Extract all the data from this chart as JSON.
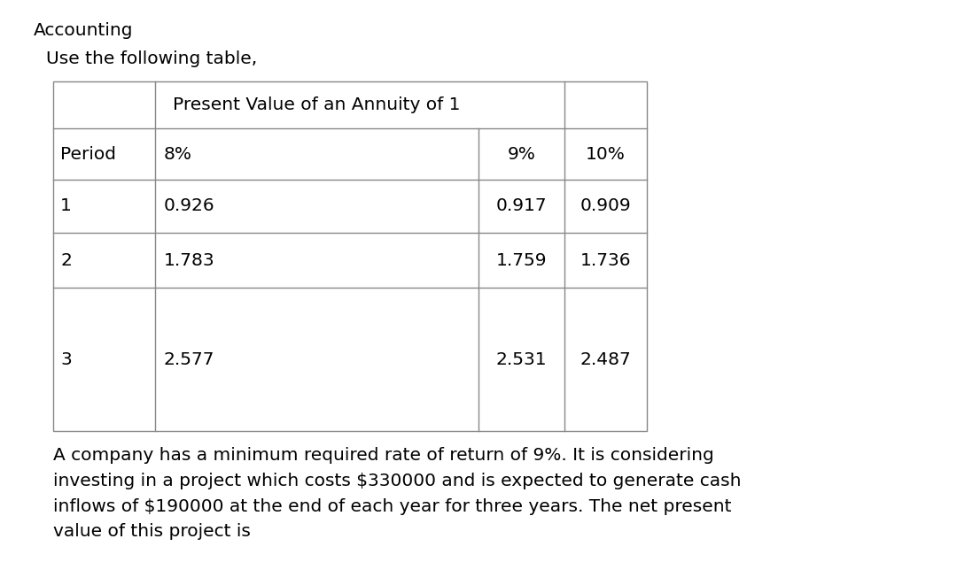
{
  "title": "Accounting",
  "subtitle": "Use the following table,",
  "table_header_merged": "Present Value of an Annuity of 1",
  "col_headers": [
    "Period",
    "8%",
    "9%",
    "10%"
  ],
  "rows": [
    [
      "1",
      "0.926",
      "0.917",
      "0.909"
    ],
    [
      "2",
      "1.783",
      "1.759",
      "1.736"
    ],
    [
      "3",
      "2.577",
      "2.531",
      "2.487"
    ]
  ],
  "paragraph": "A company has a minimum required rate of return of 9%. It is considering\ninvesting in a project which costs $330000 and is expected to generate cash\ninflows of $190000 at the end of each year for three years. The net present\nvalue of this project is",
  "bg_color": "#ffffff",
  "text_color": "#000000",
  "title_fontsize": 14.5,
  "subtitle_fontsize": 14.5,
  "table_fontsize": 14.5,
  "para_fontsize": 14.5,
  "line_color": "#888888"
}
